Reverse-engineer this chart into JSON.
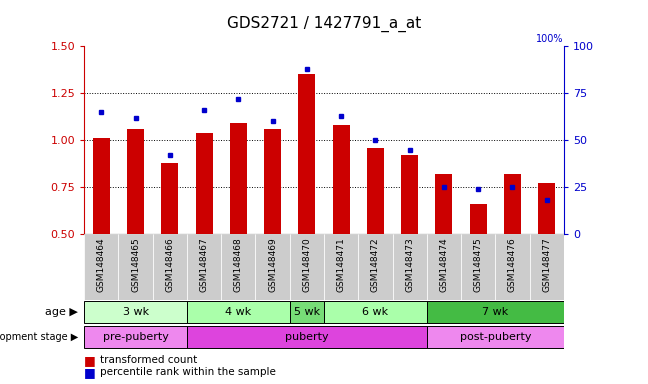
{
  "title": "GDS2721 / 1427791_a_at",
  "samples": [
    "GSM148464",
    "GSM148465",
    "GSM148466",
    "GSM148467",
    "GSM148468",
    "GSM148469",
    "GSM148470",
    "GSM148471",
    "GSM148472",
    "GSM148473",
    "GSM148474",
    "GSM148475",
    "GSM148476",
    "GSM148477"
  ],
  "transformed_count": [
    1.01,
    1.06,
    0.88,
    1.04,
    1.09,
    1.06,
    1.35,
    1.08,
    0.96,
    0.92,
    0.82,
    0.66,
    0.82,
    0.77
  ],
  "percentile_rank": [
    65,
    62,
    42,
    66,
    72,
    60,
    88,
    63,
    50,
    45,
    25,
    24,
    25,
    18
  ],
  "ylim_left": [
    0.5,
    1.5
  ],
  "ylim_right": [
    0,
    100
  ],
  "yticks_left": [
    0.5,
    0.75,
    1.0,
    1.25,
    1.5
  ],
  "yticks_right": [
    0,
    25,
    50,
    75,
    100
  ],
  "bar_color": "#cc0000",
  "dot_color": "#0000cc",
  "age_groups": [
    {
      "label": "3 wk",
      "start": 0,
      "end": 3,
      "color": "#ccffcc"
    },
    {
      "label": "4 wk",
      "start": 3,
      "end": 6,
      "color": "#aaffaa"
    },
    {
      "label": "5 wk",
      "start": 6,
      "end": 7,
      "color": "#77dd77"
    },
    {
      "label": "6 wk",
      "start": 7,
      "end": 10,
      "color": "#aaffaa"
    },
    {
      "label": "7 wk",
      "start": 10,
      "end": 14,
      "color": "#44bb44"
    }
  ],
  "dev_groups": [
    {
      "label": "pre-puberty",
      "start": 0,
      "end": 3,
      "color": "#ee88ee"
    },
    {
      "label": "puberty",
      "start": 3,
      "end": 10,
      "color": "#dd44dd"
    },
    {
      "label": "post-puberty",
      "start": 10,
      "end": 14,
      "color": "#ee88ee"
    }
  ],
  "xtick_bg": "#cccccc"
}
